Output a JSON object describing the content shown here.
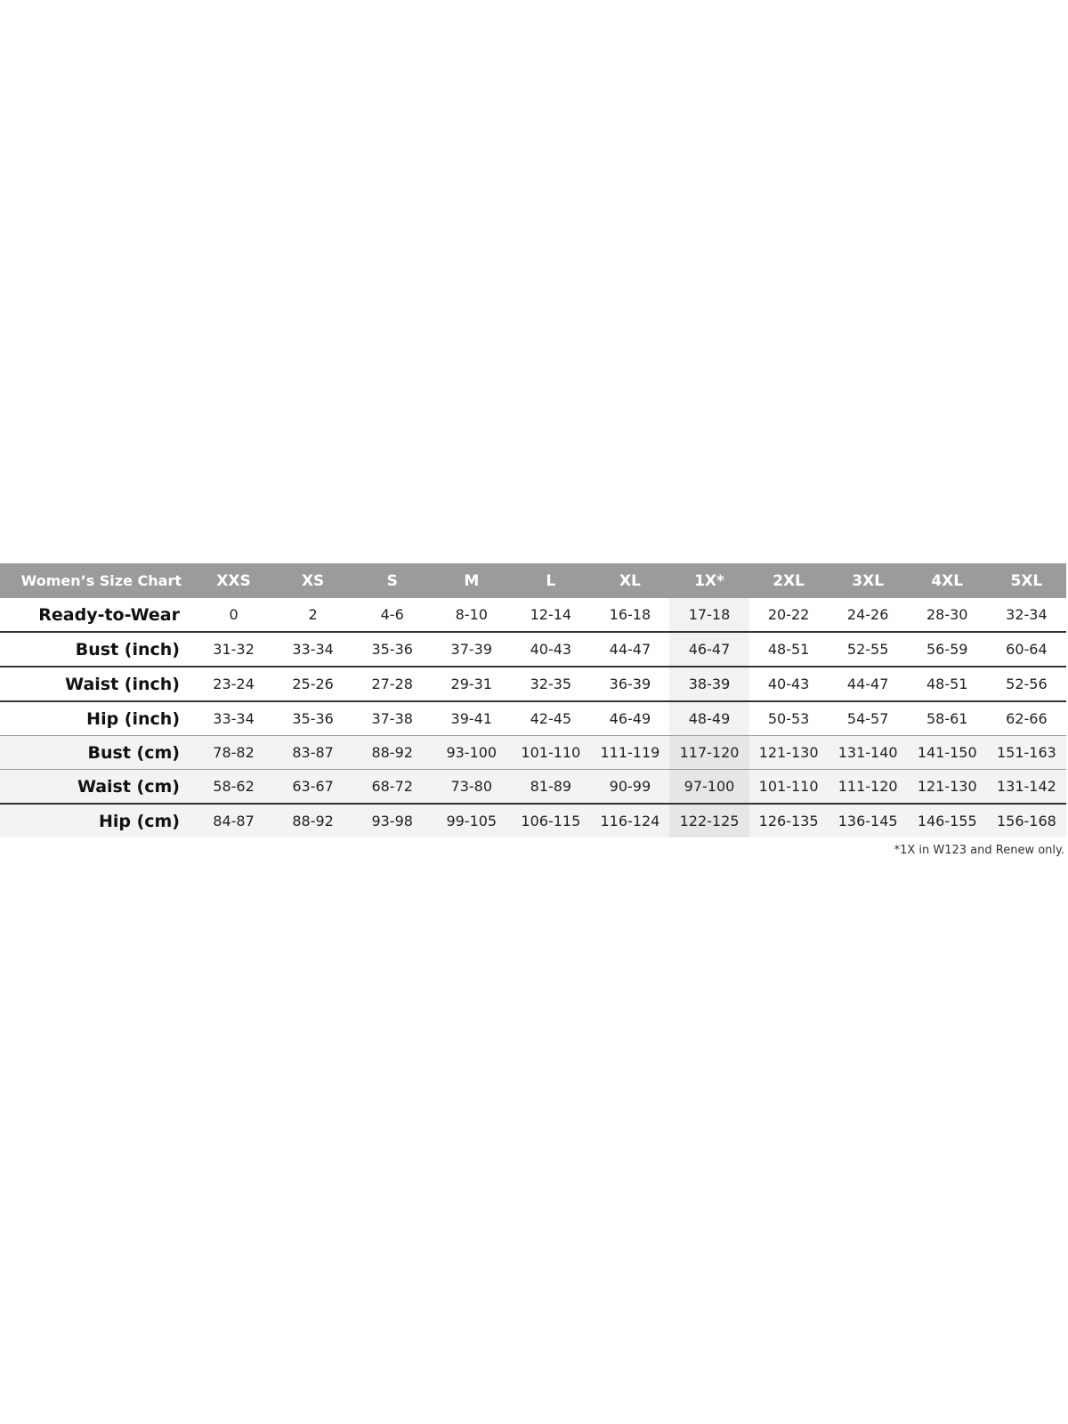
{
  "chart": {
    "title": "Women’s Size Chart",
    "sizes": [
      "XXS",
      "XS",
      "S",
      "M",
      "L",
      "XL",
      "1X*",
      "2XL",
      "3XL",
      "4XL",
      "5XL"
    ],
    "highlighted_size": "1X*",
    "rows": [
      {
        "label": "Ready-to-Wear",
        "values": [
          "0",
          "2",
          "4-6",
          "8-10",
          "12-14",
          "16-18",
          "17-18",
          "20-22",
          "24-26",
          "28-30",
          "32-34"
        ]
      },
      {
        "label": "Bust (inch)",
        "values": [
          "31-32",
          "33-34",
          "35-36",
          "37-39",
          "40-43",
          "44-47",
          "46-47",
          "48-51",
          "52-55",
          "56-59",
          "60-64"
        ]
      },
      {
        "label": "Waist (inch)",
        "values": [
          "23-24",
          "25-26",
          "27-28",
          "29-31",
          "32-35",
          "36-39",
          "38-39",
          "40-43",
          "44-47",
          "48-51",
          "52-56"
        ]
      },
      {
        "label": "Hip (inch)",
        "values": [
          "33-34",
          "35-36",
          "37-38",
          "39-41",
          "42-45",
          "46-49",
          "48-49",
          "50-53",
          "54-57",
          "58-61",
          "62-66"
        ]
      },
      {
        "label": "Bust (cm)",
        "values": [
          "78-82",
          "83-87",
          "88-92",
          "93-100",
          "101-110",
          "111-119",
          "117-120",
          "121-130",
          "131-140",
          "141-150",
          "151-163"
        ]
      },
      {
        "label": "Waist (cm)",
        "values": [
          "58-62",
          "63-67",
          "68-72",
          "73-80",
          "81-89",
          "90-99",
          "97-100",
          "101-110",
          "111-120",
          "121-130",
          "131-142"
        ]
      },
      {
        "label": "Hip (cm)",
        "values": [
          "84-87",
          "88-92",
          "93-98",
          "99-105",
          "106-115",
          "116-124",
          "122-125",
          "126-135",
          "136-145",
          "146-155",
          "156-168"
        ]
      }
    ],
    "footnote": "*1X in W123 and Renew only.",
    "colors": {
      "header_bg": "#9b9b9b",
      "header_text": "#ffffff",
      "highlight_col": "#f2f2f2",
      "cm_row_bg": "#f3f3f3"
    }
  }
}
